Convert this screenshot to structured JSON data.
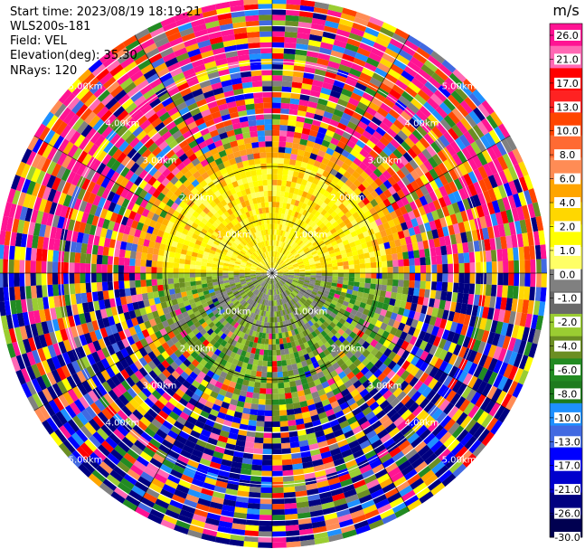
{
  "info": {
    "start_time": "Start time: 2023/08/19 18:19:21",
    "instrument": "WLS200s-181",
    "field": "Field: VEL",
    "elevation": "Elevation(deg): 35.30",
    "nrays": "NRays: 120"
  },
  "chart_data": {
    "type": "heatmap",
    "projection": "polar PPI",
    "field": "VEL",
    "units": "m/s",
    "n_rays": 120,
    "elevation_deg": 35.3,
    "range_rings_km": [
      "1.00km",
      "2.00km",
      "3.00km",
      "4.00km",
      "5.00km"
    ],
    "colorbar": {
      "title": "m/s",
      "tick_labels": [
        "26.0",
        "21.0",
        "17.0",
        "13.0",
        "10.0",
        "8.0",
        "6.0",
        "4.0",
        "2.0",
        "1.0",
        "0.0",
        "-1.0",
        "-2.0",
        "-4.0",
        "-6.0",
        "-8.0",
        "-10.0",
        "-13.0",
        "-17.0",
        "-21.0",
        "-26.0",
        "-30.0"
      ],
      "colors": [
        "#ff1493",
        "#ff69b4",
        "#ff0000",
        "#ff2222",
        "#ff4500",
        "#ff6a33",
        "#ff8c55",
        "#ffa500",
        "#ffd700",
        "#ffff00",
        "#ffff66",
        "#808080",
        "#696969",
        "#9acd32",
        "#6b8e23",
        "#228b22",
        "#1e7b1e",
        "#1e90ff",
        "#4169e1",
        "#0000ff",
        "#0000cd",
        "#000080",
        "#000050"
      ]
    }
  }
}
